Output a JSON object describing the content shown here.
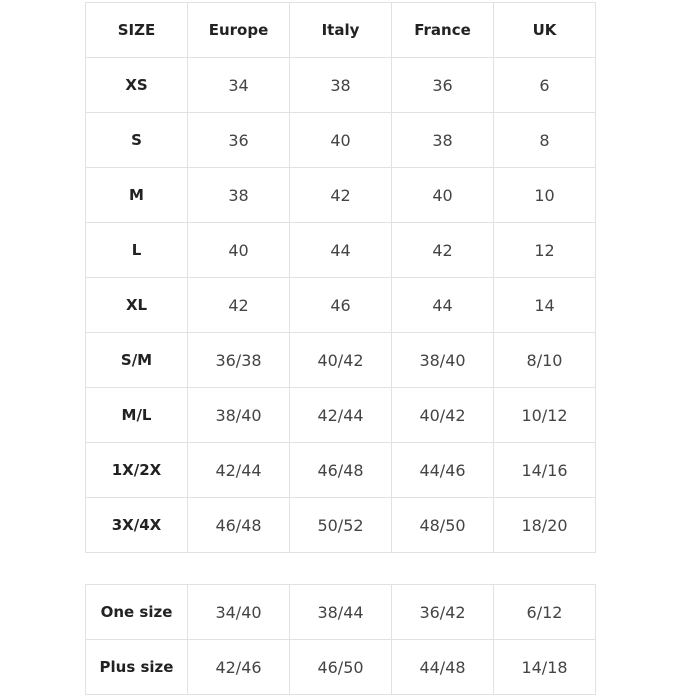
{
  "main_table": {
    "header": [
      "SIZE",
      "Europe",
      "Italy",
      "France",
      "UK"
    ],
    "rows": [
      [
        "XS",
        "34",
        "38",
        "36",
        "6"
      ],
      [
        "S",
        "36",
        "40",
        "38",
        "8"
      ],
      [
        "M",
        "38",
        "42",
        "40",
        "10"
      ],
      [
        "L",
        "40",
        "44",
        "42",
        "12"
      ],
      [
        "XL",
        "42",
        "46",
        "44",
        "14"
      ],
      [
        "S/M",
        "36/38",
        "40/42",
        "38/40",
        "8/10"
      ],
      [
        "M/L",
        "38/40",
        "42/44",
        "40/42",
        "10/12"
      ],
      [
        "1X/2X",
        "42/44",
        "46/48",
        "44/46",
        "14/16"
      ],
      [
        "3X/4X",
        "46/48",
        "50/52",
        "48/50",
        "18/20"
      ]
    ]
  },
  "extra_table": {
    "rows": [
      [
        "One size",
        "34/40",
        "38/44",
        "36/42",
        "6/12"
      ],
      [
        "Plus size",
        "42/46",
        "46/50",
        "44/48",
        "14/18"
      ]
    ]
  }
}
